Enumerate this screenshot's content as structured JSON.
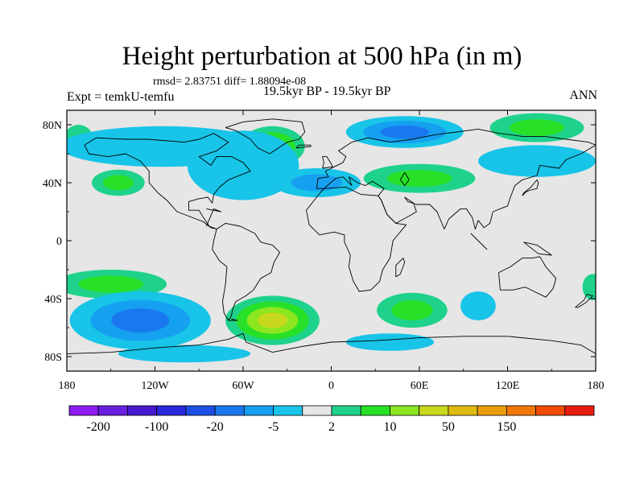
{
  "chart_data": {
    "type": "heatmap",
    "title": "Height perturbation at 500 hPa (in m)",
    "stats_text": "rmsd= 2.83751 diff= 1.88094e-08",
    "left_label": "Expt = temkU-temfu",
    "center_label": "19.5kyr BP - 19.5kyr BP",
    "right_label": "ANN",
    "xlim": [
      -180,
      180
    ],
    "ylim": [
      -90,
      90
    ],
    "x_ticks": [
      {
        "value": -180,
        "label": "180"
      },
      {
        "value": -120,
        "label": "120W"
      },
      {
        "value": -60,
        "label": "60W"
      },
      {
        "value": 0,
        "label": "0"
      },
      {
        "value": 60,
        "label": "60E"
      },
      {
        "value": 120,
        "label": "120E"
      },
      {
        "value": 180,
        "label": "180"
      }
    ],
    "y_ticks": [
      {
        "value": 80,
        "label": "80N"
      },
      {
        "value": 40,
        "label": "40N"
      },
      {
        "value": 0,
        "label": "0"
      },
      {
        "value": -40,
        "label": "40S"
      },
      {
        "value": -80,
        "label": "80S"
      }
    ],
    "colorbar": {
      "colors": [
        "#8c1cf0",
        "#6a1ee0",
        "#4818d0",
        "#2a28d8",
        "#1e4ee6",
        "#1a78ee",
        "#16a0f0",
        "#18c4e8",
        "#e6e6e6",
        "#1ed28c",
        "#28e028",
        "#8ce620",
        "#c8d81c",
        "#e0bc10",
        "#ec9c0c",
        "#f07808",
        "#f04c08",
        "#e81c10"
      ],
      "labels": [
        {
          "after_index": 0,
          "text": "-200"
        },
        {
          "after_index": 2,
          "text": "-100"
        },
        {
          "after_index": 4,
          "text": "-20"
        },
        {
          "after_index": 6,
          "text": "-5"
        },
        {
          "after_index": 8,
          "text": "2"
        },
        {
          "after_index": 10,
          "text": "10"
        },
        {
          "after_index": 12,
          "text": "50"
        },
        {
          "after_index": 14,
          "text": "150"
        }
      ]
    },
    "background_color": "#e6e6e6",
    "anomalies": [
      {
        "lon": -40,
        "lat": 65,
        "rx": 22,
        "ry": 14,
        "levels": [
          9,
          10,
          11
        ]
      },
      {
        "lon": -172,
        "lat": 70,
        "rx": 10,
        "ry": 10,
        "levels": [
          9
        ]
      },
      {
        "lon": -145,
        "lat": 40,
        "rx": 18,
        "ry": 9,
        "levels": [
          9,
          10
        ]
      },
      {
        "lon": 60,
        "lat": 43,
        "rx": 38,
        "ry": 10,
        "levels": [
          9,
          10
        ]
      },
      {
        "lon": 140,
        "lat": 78,
        "rx": 32,
        "ry": 10,
        "levels": [
          9,
          10
        ]
      },
      {
        "lon": -150,
        "lat": -30,
        "rx": 38,
        "ry": 10,
        "levels": [
          9,
          10
        ]
      },
      {
        "lon": -40,
        "lat": -55,
        "rx": 32,
        "ry": 17,
        "levels": [
          9,
          10,
          11,
          12
        ]
      },
      {
        "lon": 55,
        "lat": -48,
        "rx": 24,
        "ry": 12,
        "levels": [
          9,
          10
        ]
      },
      {
        "lon": 178,
        "lat": -32,
        "rx": 7,
        "ry": 9,
        "levels": [
          9
        ]
      },
      {
        "lon": -115,
        "lat": 65,
        "rx": 70,
        "ry": 14,
        "levels": [
          7
        ]
      },
      {
        "lon": -60,
        "lat": 52,
        "rx": 38,
        "ry": 24,
        "levels": [
          7
        ]
      },
      {
        "lon": -10,
        "lat": 40,
        "rx": 30,
        "ry": 10,
        "levels": [
          7,
          6
        ]
      },
      {
        "lon": 50,
        "lat": 75,
        "rx": 40,
        "ry": 11,
        "levels": [
          7,
          6,
          5
        ]
      },
      {
        "lon": 140,
        "lat": 55,
        "rx": 40,
        "ry": 11,
        "levels": [
          7
        ]
      },
      {
        "lon": -130,
        "lat": -55,
        "rx": 48,
        "ry": 20,
        "levels": [
          7,
          6,
          5
        ]
      },
      {
        "lon": 100,
        "lat": -45,
        "rx": 12,
        "ry": 10,
        "levels": [
          7
        ]
      },
      {
        "lon": 40,
        "lat": -70,
        "rx": 30,
        "ry": 6,
        "levels": [
          7
        ]
      },
      {
        "lon": -100,
        "lat": -78,
        "rx": 45,
        "ry": 6,
        "levels": [
          7
        ]
      }
    ],
    "coastlines": [
      [
        [
          -168,
          66
        ],
        [
          -160,
          71
        ],
        [
          -140,
          70
        ],
        [
          -125,
          70
        ],
        [
          -100,
          68
        ],
        [
          -90,
          70
        ],
        [
          -80,
          74
        ],
        [
          -70,
          68
        ],
        [
          -78,
          62
        ],
        [
          -90,
          58
        ],
        [
          -82,
          52
        ],
        [
          -78,
          58
        ],
        [
          -68,
          58
        ],
        [
          -60,
          54
        ],
        [
          -55,
          48
        ],
        [
          -65,
          44
        ],
        [
          -70,
          42
        ],
        [
          -76,
          37
        ],
        [
          -80,
          32
        ],
        [
          -81,
          26
        ],
        [
          -84,
          30
        ],
        [
          -90,
          29
        ],
        [
          -97,
          27
        ],
        [
          -97,
          21
        ],
        [
          -90,
          21
        ],
        [
          -87,
          16
        ],
        [
          -83,
          10
        ],
        [
          -78,
          8
        ],
        [
          -82,
          9
        ],
        [
          -87,
          13
        ],
        [
          -92,
          15
        ],
        [
          -105,
          20
        ],
        [
          -112,
          28
        ],
        [
          -118,
          33
        ],
        [
          -124,
          40
        ],
        [
          -124,
          48
        ],
        [
          -130,
          55
        ],
        [
          -140,
          60
        ],
        [
          -152,
          58
        ],
        [
          -165,
          60
        ],
        [
          -168,
          66
        ]
      ],
      [
        [
          -78,
          8
        ],
        [
          -72,
          12
        ],
        [
          -62,
          10
        ],
        [
          -52,
          5
        ],
        [
          -48,
          -1
        ],
        [
          -40,
          -3
        ],
        [
          -35,
          -8
        ],
        [
          -39,
          -15
        ],
        [
          -41,
          -22
        ],
        [
          -48,
          -26
        ],
        [
          -53,
          -34
        ],
        [
          -58,
          -38
        ],
        [
          -65,
          -42
        ],
        [
          -67,
          -47
        ],
        [
          -68,
          -52
        ],
        [
          -70,
          -55
        ],
        [
          -73,
          -50
        ],
        [
          -74,
          -42
        ],
        [
          -72,
          -30
        ],
        [
          -71,
          -18
        ],
        [
          -76,
          -14
        ],
        [
          -81,
          -6
        ],
        [
          -80,
          0
        ],
        [
          -78,
          8
        ]
      ],
      [
        [
          -72,
          78
        ],
        [
          -60,
          82
        ],
        [
          -40,
          84
        ],
        [
          -20,
          82
        ],
        [
          -18,
          75
        ],
        [
          -22,
          70
        ],
        [
          -30,
          68
        ],
        [
          -42,
          60
        ],
        [
          -50,
          64
        ],
        [
          -55,
          70
        ],
        [
          -65,
          76
        ],
        [
          -72,
          78
        ]
      ],
      [
        [
          -10,
          36
        ],
        [
          -9,
          43
        ],
        [
          -2,
          44
        ],
        [
          -4,
          48
        ],
        [
          2,
          51
        ],
        [
          8,
          54
        ],
        [
          10,
          58
        ],
        [
          5,
          62
        ],
        [
          14,
          68
        ],
        [
          25,
          71
        ],
        [
          40,
          68
        ],
        [
          55,
          70
        ],
        [
          70,
          73
        ],
        [
          85,
          75
        ],
        [
          100,
          77
        ],
        [
          115,
          74
        ],
        [
          130,
          72
        ],
        [
          145,
          72
        ],
        [
          160,
          70
        ],
        [
          175,
          68
        ],
        [
          180,
          66
        ],
        [
          170,
          60
        ],
        [
          160,
          56
        ],
        [
          155,
          50
        ],
        [
          142,
          52
        ],
        [
          140,
          45
        ],
        [
          130,
          42
        ],
        [
          125,
          38
        ],
        [
          122,
          30
        ],
        [
          120,
          24
        ],
        [
          110,
          20
        ],
        [
          108,
          12
        ],
        [
          104,
          9
        ],
        [
          100,
          14
        ],
        [
          98,
          8
        ],
        [
          96,
          16
        ],
        [
          92,
          22
        ],
        [
          88,
          22
        ],
        [
          80,
          15
        ],
        [
          77,
          8
        ],
        [
          72,
          20
        ],
        [
          67,
          25
        ],
        [
          58,
          25
        ],
        [
          52,
          27
        ],
        [
          50,
          30
        ],
        [
          56,
          26
        ],
        [
          58,
          20
        ],
        [
          53,
          17
        ],
        [
          44,
          12
        ],
        [
          38,
          18
        ],
        [
          34,
          28
        ],
        [
          32,
          31
        ],
        [
          36,
          36
        ],
        [
          28,
          41
        ],
        [
          23,
          38
        ],
        [
          18,
          40
        ],
        [
          12,
          44
        ],
        [
          14,
          38
        ],
        [
          8,
          44
        ],
        [
          3,
          43
        ],
        [
          -5,
          36
        ],
        [
          -10,
          36
        ]
      ],
      [
        [
          -17,
          21
        ],
        [
          -10,
          30
        ],
        [
          -5,
          36
        ],
        [
          10,
          37
        ],
        [
          20,
          32
        ],
        [
          32,
          31
        ],
        [
          34,
          28
        ],
        [
          38,
          18
        ],
        [
          44,
          12
        ],
        [
          51,
          11
        ],
        [
          42,
          0
        ],
        [
          40,
          -12
        ],
        [
          35,
          -20
        ],
        [
          33,
          -28
        ],
        [
          27,
          -34
        ],
        [
          19,
          -35
        ],
        [
          15,
          -28
        ],
        [
          12,
          -18
        ],
        [
          13,
          -10
        ],
        [
          9,
          -1
        ],
        [
          9,
          4
        ],
        [
          2,
          6
        ],
        [
          -8,
          4
        ],
        [
          -15,
          11
        ],
        [
          -17,
          21
        ]
      ],
      [
        [
          114,
          -22
        ],
        [
          122,
          -18
        ],
        [
          130,
          -12
        ],
        [
          137,
          -12
        ],
        [
          142,
          -11
        ],
        [
          146,
          -18
        ],
        [
          153,
          -26
        ],
        [
          151,
          -33
        ],
        [
          146,
          -39
        ],
        [
          138,
          -35
        ],
        [
          132,
          -32
        ],
        [
          124,
          -34
        ],
        [
          115,
          -34
        ],
        [
          114,
          -22
        ]
      ],
      [
        [
          -180,
          -78
        ],
        [
          -150,
          -77
        ],
        [
          -120,
          -74
        ],
        [
          -90,
          -72
        ],
        [
          -70,
          -68
        ],
        [
          -60,
          -64
        ],
        [
          -58,
          -70
        ],
        [
          -40,
          -77
        ],
        [
          -20,
          -73
        ],
        [
          0,
          -70
        ],
        [
          30,
          -69
        ],
        [
          60,
          -67
        ],
        [
          90,
          -66
        ],
        [
          120,
          -66
        ],
        [
          150,
          -69
        ],
        [
          170,
          -72
        ],
        [
          180,
          -78
        ]
      ],
      [
        [
          -6,
          50
        ],
        [
          -5,
          54
        ],
        [
          -6,
          58
        ],
        [
          -3,
          58
        ],
        [
          0,
          53
        ],
        [
          1,
          51
        ],
        [
          -6,
          50
        ]
      ],
      [
        [
          130,
          31
        ],
        [
          133,
          34
        ],
        [
          136,
          35
        ],
        [
          140,
          36
        ],
        [
          141,
          40
        ],
        [
          140,
          42
        ],
        [
          136,
          37
        ],
        [
          131,
          33
        ],
        [
          130,
          31
        ]
      ],
      [
        [
          44,
          -25
        ],
        [
          47,
          -23
        ],
        [
          50,
          -15
        ],
        [
          49,
          -12
        ],
        [
          44,
          -17
        ],
        [
          44,
          -25
        ]
      ],
      [
        [
          166,
          -46
        ],
        [
          172,
          -41
        ],
        [
          174,
          -37
        ],
        [
          178,
          -38
        ],
        [
          173,
          -43
        ],
        [
          168,
          -46
        ],
        [
          166,
          -46
        ]
      ],
      [
        [
          95,
          5
        ],
        [
          105,
          -5
        ],
        [
          106,
          -6
        ],
        [
          100,
          0
        ],
        [
          95,
          5
        ]
      ],
      [
        [
          131,
          -1
        ],
        [
          140,
          -3
        ],
        [
          150,
          -10
        ],
        [
          141,
          -9
        ],
        [
          131,
          -1
        ]
      ],
      [
        [
          -24,
          64
        ],
        [
          -14,
          65
        ],
        [
          -14,
          66
        ],
        [
          -22,
          66
        ],
        [
          -24,
          64
        ]
      ],
      [
        [
          -85,
          10
        ],
        [
          -80,
          22
        ],
        [
          -75,
          20
        ],
        [
          -85,
          22
        ]
      ],
      [
        [
          -68,
          -54
        ],
        [
          -64,
          -55
        ],
        [
          -70,
          -55
        ]
      ],
      [
        [
          50,
          47
        ],
        [
          53,
          42
        ],
        [
          50,
          38
        ],
        [
          47,
          42
        ],
        [
          50,
          47
        ]
      ]
    ]
  }
}
